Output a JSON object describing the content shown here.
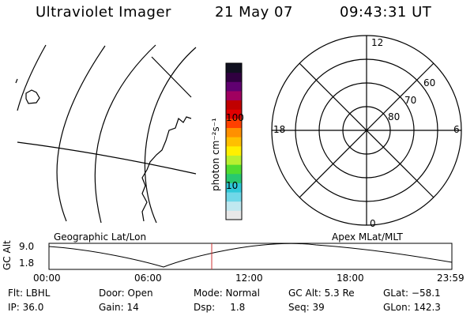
{
  "header": {
    "instrument": "Ultraviolet Imager",
    "date": "21 May 07",
    "time": "09:43:31 UT"
  },
  "colorbar": {
    "unit_label": "photon cm⁻²s⁻¹",
    "ticks": [
      "100",
      "10"
    ],
    "tick_values": [
      100,
      10
    ],
    "colors": [
      "#e8e8e8",
      "#c0e8f0",
      "#70d8e8",
      "#30c8d8",
      "#28c870",
      "#50dc30",
      "#b8f030",
      "#fff000",
      "#ffc000",
      "#ff9000",
      "#ff4000",
      "#e00000",
      "#c00000",
      "#a00060",
      "#600070",
      "#300040",
      "#101020"
    ]
  },
  "geo_panel": {
    "label": "Geographic Lat/Lon"
  },
  "polar": {
    "label": "Apex MLat/MLT",
    "mlt_labels": [
      "12",
      "18",
      "6",
      "0"
    ],
    "lat_labels": [
      "60",
      "70",
      "80"
    ]
  },
  "timeline": {
    "ylabel": "GC Alt",
    "y_ticks": [
      "9.0",
      "1.8"
    ],
    "x_ticks": [
      "00:00",
      "06:00",
      "12:00",
      "18:00",
      "23:59"
    ],
    "current_time_marker": "09:43",
    "marker_color": "#cc3333"
  },
  "info": {
    "flt": "Flt: LBHL",
    "ip": "IP: 36.0",
    "door": "Door: Open",
    "gain": "Gain: 14",
    "mode": "Mode: Normal",
    "dsp": "Dsp:     1.8",
    "gcalt": "GC Alt: 5.3 Re",
    "seq": "Seq: 39",
    "glat": "GLat: −58.1",
    "glon": "GLon: 142.3"
  }
}
